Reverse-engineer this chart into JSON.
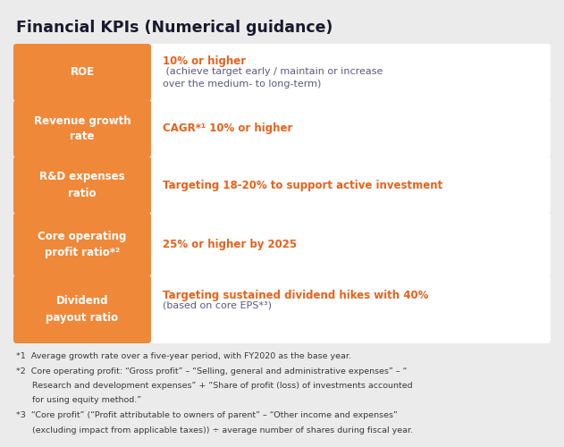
{
  "title": "Financial KPIs (Numerical guidance)",
  "title_color": "#1a1a2e",
  "bg_color": "#ebebeb",
  "card_bg_color": "#ffffff",
  "orange_color": "#f0883a",
  "orange_text_color": "#e8611a",
  "dark_text_color": "#5a5a7a",
  "rows": [
    {
      "label": "ROE",
      "value_bold": "10% or higher",
      "value_rest": " (achieve target early / maintain or increase\nover the medium- to long-term)"
    },
    {
      "label": "Revenue growth\nrate",
      "value_bold": "CAGR*¹ 10% or higher",
      "value_rest": ""
    },
    {
      "label": "R&D expenses\nratio",
      "value_bold": "Targeting 18-20% to support active investment",
      "value_rest": ""
    },
    {
      "label": "Core operating\nprofit ratio*²",
      "value_bold": "25% or higher by 2025",
      "value_rest": ""
    },
    {
      "label": "Dividend\npayout ratio",
      "value_bold": "Targeting sustained dividend hikes with 40%",
      "value_rest": "\n(based on core EPS*³)"
    }
  ],
  "footnote_lines": [
    "*1  Average growth rate over a five-year period, with FY2020 as the base year.",
    "*2  Core operating profit: “Gross profit” – “Selling, general and administrative expenses” – “",
    "      Research and development expenses” + “Share of profit (loss) of investments accounted",
    "      for using equity method.”",
    "*3  “Core profit” (“Profit attributable to owners of parent” – “Other income and expenses”",
    "      (excluding impact from applicable taxes)) ÷ average number of shares during fiscal year."
  ]
}
